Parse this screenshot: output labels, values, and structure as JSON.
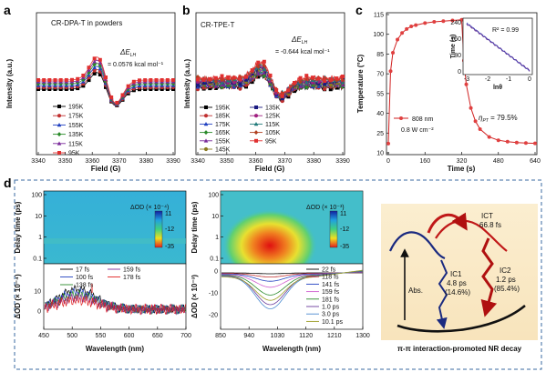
{
  "figure": {
    "panel_labels": [
      "a",
      "b",
      "c",
      "d"
    ]
  },
  "panel_a": {
    "inner_title": "CR-DPA-T in powders",
    "delta_symbol": "ΔE",
    "delta_sub": "LH",
    "delta_value": "= 0.0576 kcal mol⁻¹",
    "xlabel": "Field (G)",
    "ylabel": "Intensity (a.u.)",
    "xticks": [
      "3340",
      "3350",
      "3360",
      "3370",
      "3380",
      "3390"
    ],
    "legend": [
      {
        "label": "195K",
        "color": "#000000",
        "marker": "square"
      },
      {
        "label": "175K",
        "color": "#c03030",
        "marker": "circle"
      },
      {
        "label": "155K",
        "color": "#2040c0",
        "marker": "triangle"
      },
      {
        "label": "135K",
        "color": "#2a8a2a",
        "marker": "diamond"
      },
      {
        "label": "115K",
        "color": "#7a2a9a",
        "marker": "triangle"
      },
      {
        "label": "95K",
        "color": "#e03030",
        "marker": "square"
      }
    ]
  },
  "panel_b": {
    "inner_title": "CR-TPE-T",
    "delta_symbol": "ΔE",
    "delta_sub": "LH",
    "delta_value": "= -0.644 kcal mol⁻¹",
    "xlabel": "Field (G)",
    "ylabel": "Intensity (a.u.)",
    "xticks": [
      "3340",
      "3350",
      "3360",
      "3370",
      "3380",
      "3390"
    ],
    "legend": [
      {
        "label": "195K",
        "color": "#000000",
        "marker": "square"
      },
      {
        "label": "185K",
        "color": "#c03030",
        "marker": "circle"
      },
      {
        "label": "175K",
        "color": "#2040c0",
        "marker": "triangle"
      },
      {
        "label": "165K",
        "color": "#2a8a2a",
        "marker": "diamond"
      },
      {
        "label": "155K",
        "color": "#7a2a9a",
        "marker": "triangle"
      },
      {
        "label": "145K",
        "color": "#8a7a20",
        "marker": "circle"
      },
      {
        "label": "135K",
        "color": "#1a1a80",
        "marker": "square"
      },
      {
        "label": "125K",
        "color": "#a02080",
        "marker": "circle"
      },
      {
        "label": "115K",
        "color": "#207a7a",
        "marker": "triangle"
      },
      {
        "label": "105K",
        "color": "#b04020",
        "marker": "diamond"
      },
      {
        "label": "95K",
        "color": "#e03030",
        "marker": "square"
      }
    ]
  },
  "panel_c": {
    "xlabel": "Time (s)",
    "ylabel": "Temperature (°C)",
    "xticks": [
      "0",
      "160",
      "320",
      "480",
      "640"
    ],
    "yticks": [
      "115",
      "100",
      "85",
      "70",
      "55",
      "40",
      "25",
      "10"
    ],
    "legend_label": "808 nm",
    "power": "0.8 W cm⁻²",
    "eta_symbol": "η",
    "eta_sub": "PT",
    "eta_value": " = 79.5%",
    "inset": {
      "xlabel": "lnθ",
      "ylabel": "Time (s)",
      "r2": "R² = 0.99",
      "xticks": [
        "-3",
        "-2",
        "-1",
        "0"
      ],
      "yticks": [
        "240",
        "160",
        "80",
        "0"
      ]
    },
    "chart_data": {
      "type": "line",
      "x": [
        0,
        10,
        20,
        40,
        60,
        80,
        100,
        120,
        160,
        200,
        240,
        280,
        320,
        330,
        340,
        360,
        380,
        400,
        440,
        480,
        520,
        560,
        600,
        640
      ],
      "y": [
        17,
        72,
        86,
        96,
        101,
        104,
        106,
        107,
        108.5,
        109.5,
        110,
        110.5,
        111,
        80,
        62,
        44,
        34,
        28,
        22,
        19.5,
        18.5,
        17.8,
        17.4,
        17.2
      ],
      "xlim": [
        0,
        640
      ],
      "ylim": [
        10,
        115
      ]
    }
  },
  "panel_d": {
    "map1": {
      "ylabel": "Delay time (ps)",
      "yticks": [
        "100",
        "10",
        "1",
        "0.1"
      ],
      "colorbar_title": "ΔOD (× 10⁻⁴)",
      "colorbar_ticks": [
        "11",
        "-12",
        "-35"
      ]
    },
    "map2": {
      "ylabel": "Delay time (ps)",
      "yticks": [
        "100",
        "10",
        "1",
        "0.1"
      ],
      "colorbar_title": "ΔOD (× 10⁻³)",
      "colorbar_ticks": [
        "11",
        "-12",
        "-35"
      ]
    },
    "spec1": {
      "xlabel": "Wavelength (nm)",
      "ylabel": "ΔOD (× 10⁻⁴)",
      "xticks": [
        "450",
        "500",
        "550",
        "600",
        "650",
        "700"
      ],
      "yticks": [
        "10",
        "0"
      ],
      "legend": [
        {
          "label": "17 fs",
          "color": "#000000"
        },
        {
          "label": "100 fs",
          "color": "#2040c0"
        },
        {
          "label": "138 fs",
          "color": "#2a8a2a"
        },
        {
          "label": "159 fs",
          "color": "#7a2a9a"
        },
        {
          "label": "178 fs",
          "color": "#e02020"
        }
      ]
    },
    "spec2": {
      "xlabel": "Wavelength (nm)",
      "ylabel": "ΔOD (× 10⁻³)",
      "xticks": [
        "850",
        "940",
        "1030",
        "1120",
        "1210",
        "1300"
      ],
      "yticks": [
        "0",
        "-10",
        "-20"
      ],
      "legend": [
        {
          "label": "22 fs",
          "color": "#000000"
        },
        {
          "label": "118 fs",
          "color": "#c03030"
        },
        {
          "label": "141 fs",
          "color": "#2040c0"
        },
        {
          "label": "159 fs",
          "color": "#d060d0"
        },
        {
          "label": "181 fs",
          "color": "#2a8a2a"
        },
        {
          "label": "1.0 ps",
          "color": "#6a3a9a"
        },
        {
          "label": "3.0 ps",
          "color": "#4a8ad0"
        },
        {
          "label": "10.1 ps",
          "color": "#9a9a20"
        }
      ]
    },
    "scheme": {
      "ict_label": "ICT",
      "ict_time": "66.8 fs",
      "abs_label": "Abs.",
      "ic1_label": "IC1",
      "ic1_time": "4.8 ps",
      "ic1_pct": "(14.6%)",
      "ic2_label": "IC2",
      "ic2_time": "1.2 ps",
      "ic2_pct": "(85.4%)",
      "caption": "π-π interaction-promoted NR decay"
    }
  }
}
